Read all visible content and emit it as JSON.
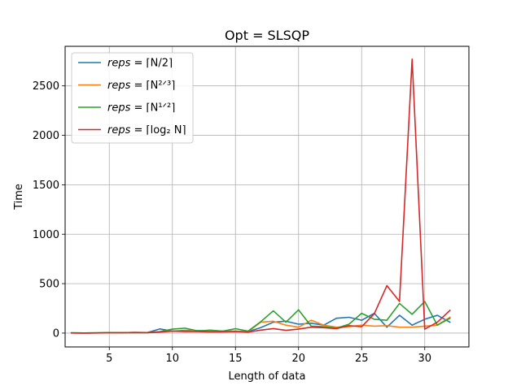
{
  "chart_data": {
    "type": "line",
    "title": "Opt = SLSQP",
    "xlabel": "Length of data",
    "ylabel": "Time",
    "xlim": [
      1.5,
      33.5
    ],
    "ylim": [
      -140,
      2900
    ],
    "xticks": [
      5,
      10,
      15,
      20,
      25,
      30
    ],
    "yticks": [
      0,
      500,
      1000,
      1500,
      2000,
      2500
    ],
    "grid": true,
    "legend_position": "top-left",
    "x": [
      2,
      3,
      4,
      5,
      6,
      7,
      8,
      9,
      10,
      11,
      12,
      13,
      14,
      15,
      16,
      17,
      18,
      19,
      20,
      21,
      22,
      23,
      24,
      25,
      26,
      27,
      28,
      29,
      30,
      31,
      32
    ],
    "series": [
      {
        "name": "reps = ⌈N/2⌉",
        "color": "#1f77b4",
        "values": [
          2,
          1,
          2,
          5,
          4,
          6,
          5,
          42,
          20,
          28,
          25,
          22,
          20,
          20,
          15,
          55,
          110,
          120,
          90,
          100,
          80,
          150,
          160,
          130,
          200,
          60,
          180,
          80,
          140,
          180,
          110
        ]
      },
      {
        "name": "reps = ⌈N^(2/3)⌉",
        "color": "#ff7f0e",
        "values": [
          2,
          1,
          2,
          4,
          4,
          6,
          4,
          15,
          20,
          22,
          22,
          18,
          18,
          20,
          15,
          110,
          120,
          80,
          60,
          130,
          80,
          60,
          65,
          80,
          70,
          75,
          60,
          60,
          70,
          80,
          160
        ]
      },
      {
        "name": "reps = ⌈N^(1/2)⌉",
        "color": "#2ca02c",
        "values": [
          2,
          1,
          2,
          5,
          4,
          6,
          5,
          15,
          40,
          50,
          22,
          30,
          20,
          45,
          20,
          115,
          225,
          110,
          235,
          70,
          65,
          50,
          90,
          200,
          140,
          130,
          300,
          190,
          320,
          80,
          150
        ]
      },
      {
        "name": "reps = ⌈log₂ N⌉",
        "color": "#d62728",
        "values": [
          1,
          0,
          1,
          3,
          3,
          5,
          4,
          10,
          20,
          15,
          15,
          12,
          12,
          15,
          10,
          30,
          45,
          28,
          40,
          60,
          55,
          45,
          75,
          65,
          195,
          480,
          320,
          2770,
          40,
          110,
          230
        ]
      }
    ],
    "legend_labels": [
      {
        "prefix": "reps",
        "body": "= ⌈N/2⌉"
      },
      {
        "prefix": "reps",
        "body": "= ⌈N²ᐟ³⌉"
      },
      {
        "prefix": "reps",
        "body": "= ⌈N¹ᐟ²⌉"
      },
      {
        "prefix": "reps",
        "body": "= ⌈log₂ N⌉"
      }
    ]
  }
}
